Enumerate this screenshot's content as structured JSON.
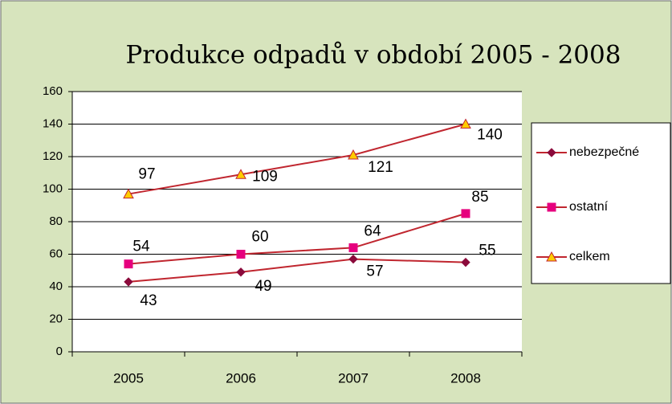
{
  "chart_data": {
    "type": "line",
    "title": "Produkce odpadů v období 2005 - 2008",
    "categories": [
      "2005",
      "2006",
      "2007",
      "2008"
    ],
    "series": [
      {
        "name": "nebezpečné",
        "color": "#c0262f",
        "marker": "diamond",
        "marker_color": "#8b0a3b",
        "values": [
          43,
          49,
          57,
          55
        ]
      },
      {
        "name": "ostatní",
        "color": "#c0262f",
        "marker": "square",
        "marker_color": "#e6007e",
        "values": [
          54,
          60,
          64,
          85
        ]
      },
      {
        "name": "celkem",
        "color": "#c0262f",
        "marker": "triangle",
        "marker_color": "#ffcc00",
        "values": [
          97,
          109,
          121,
          140
        ]
      }
    ],
    "ylim": [
      0,
      160
    ],
    "yticks": [
      0,
      20,
      40,
      60,
      80,
      100,
      120,
      140,
      160
    ],
    "grid": true,
    "legend": "right"
  }
}
